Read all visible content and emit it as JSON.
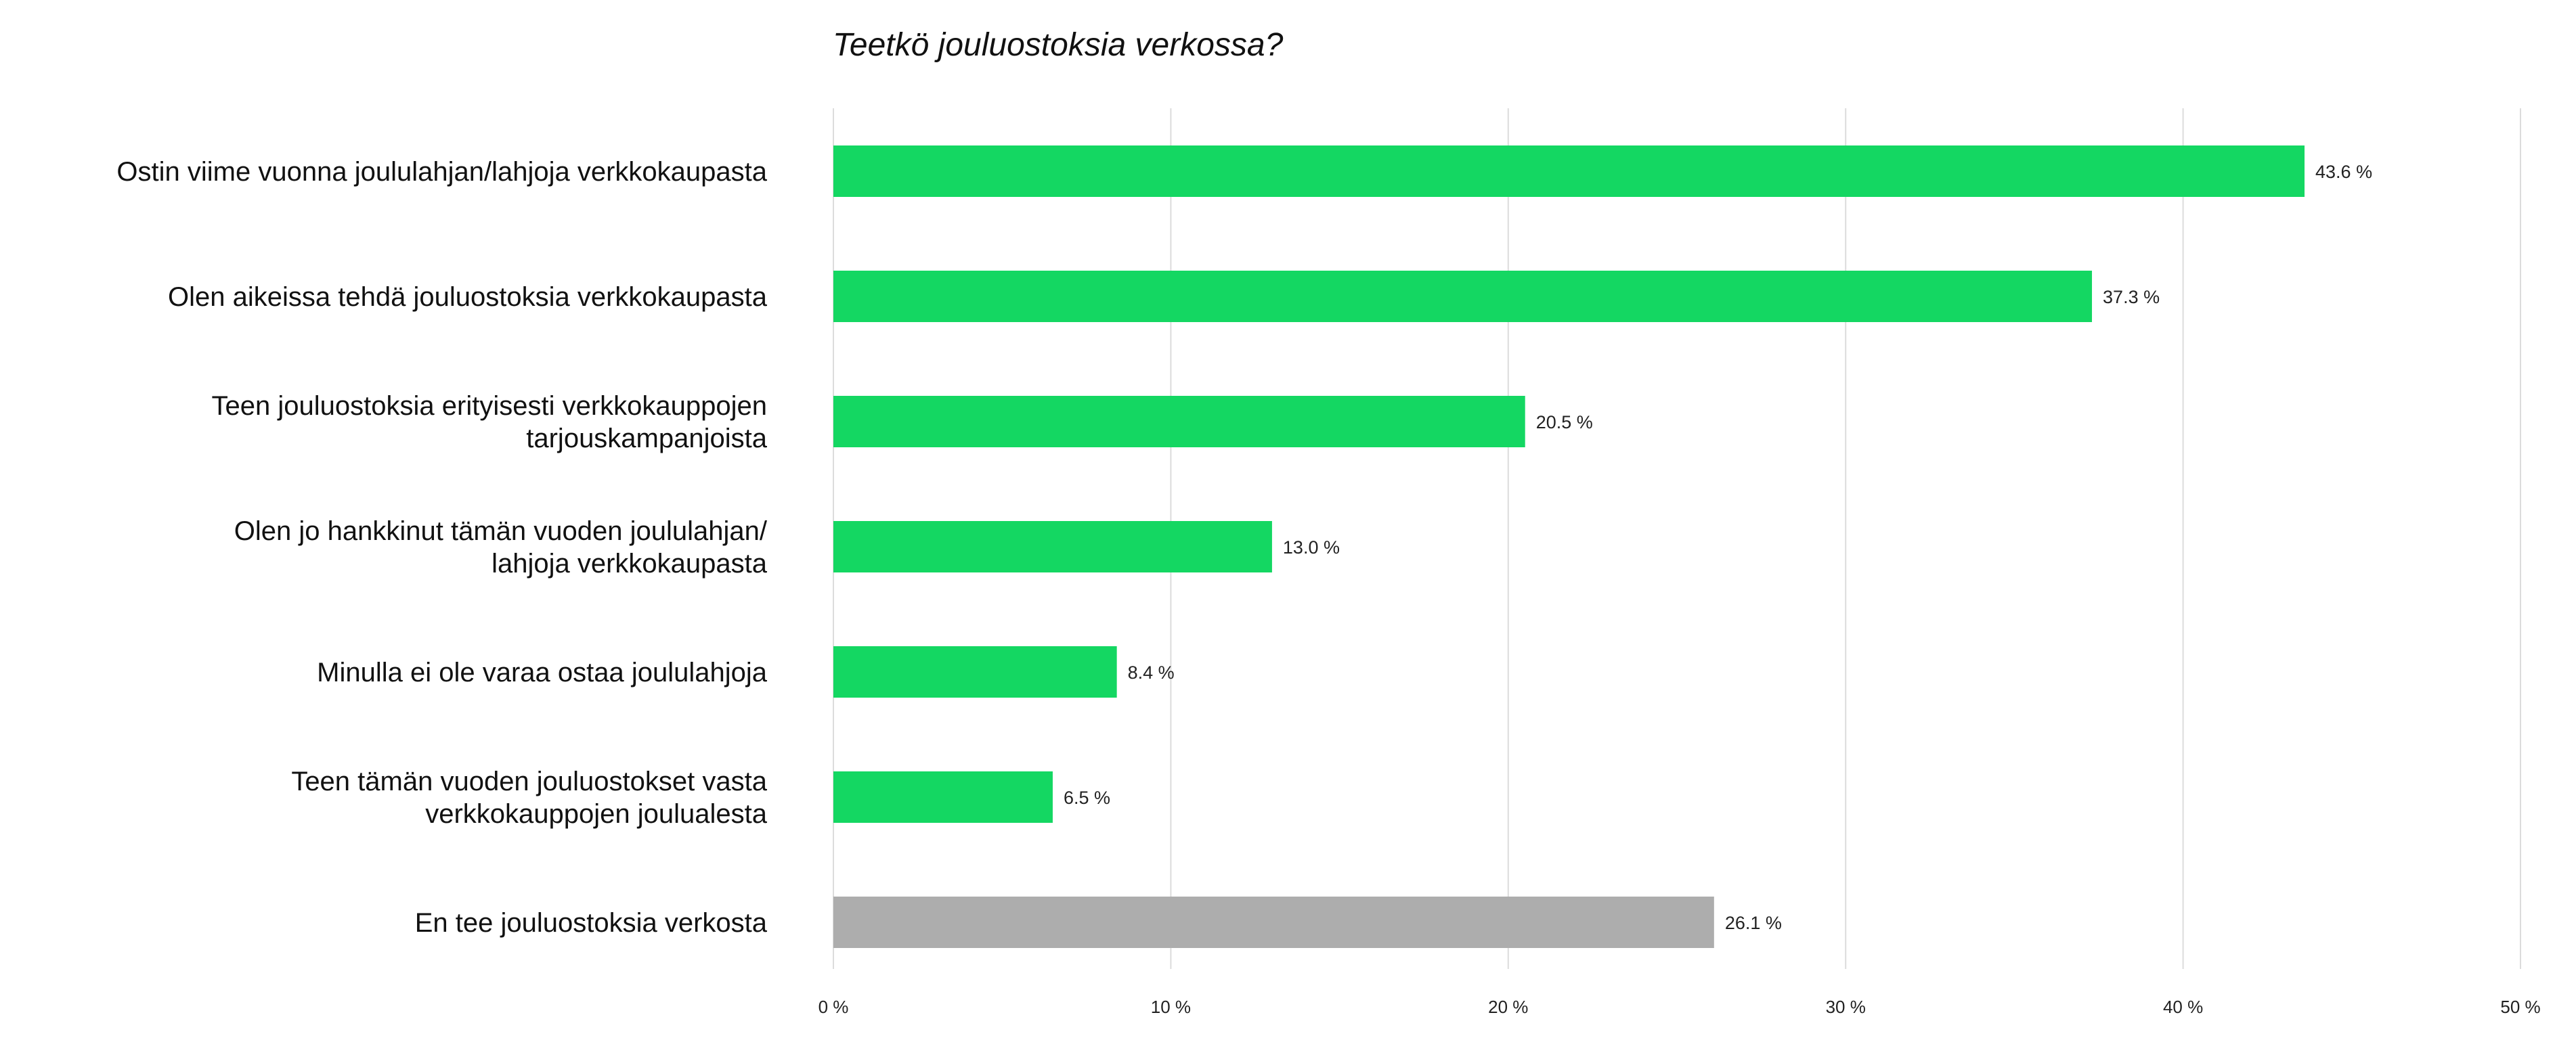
{
  "chart_data": {
    "type": "bar",
    "orientation": "horizontal",
    "title": "Teetkö jouluostoksia verkossa?",
    "categories": [
      [
        "Ostin viime vuonna joululahjan/lahjoja verkkokaupasta"
      ],
      [
        "Olen aikeissa tehdä  jouluostoksia verkkokaupasta"
      ],
      [
        "Teen jouluostoksia erityisesti verkkokauppojen",
        "tarjouskampanjoista"
      ],
      [
        "Olen jo hankkinut tämän vuoden joululahjan/",
        "lahjoja verkkokaupasta"
      ],
      [
        "Minulla ei ole varaa ostaa joululahjoja"
      ],
      [
        "Teen tämän vuoden jouluostokset vasta",
        "verkkokauppojen joulualesta"
      ],
      [
        "En tee jouluostoksia verkosta"
      ]
    ],
    "values": [
      43.6,
      37.3,
      20.5,
      13.0,
      8.4,
      6.5,
      26.1
    ],
    "value_labels": [
      "43.6 %",
      "37.3 %",
      "20.5 %",
      "13.0 %",
      "8.4 %",
      "6.5 %",
      "26.1 %"
    ],
    "bar_colors": [
      "#14d762",
      "#14d762",
      "#14d762",
      "#14d762",
      "#14d762",
      "#14d762",
      "#adadad"
    ],
    "xlim": [
      0,
      50
    ],
    "x_ticks": [
      0,
      10,
      20,
      30,
      40,
      50
    ],
    "x_tick_labels": [
      "0 %",
      "10 %",
      "20 %",
      "30 %",
      "40 %",
      "50 %"
    ],
    "xlabel": "",
    "ylabel": "",
    "grid": true,
    "legend": "none"
  }
}
